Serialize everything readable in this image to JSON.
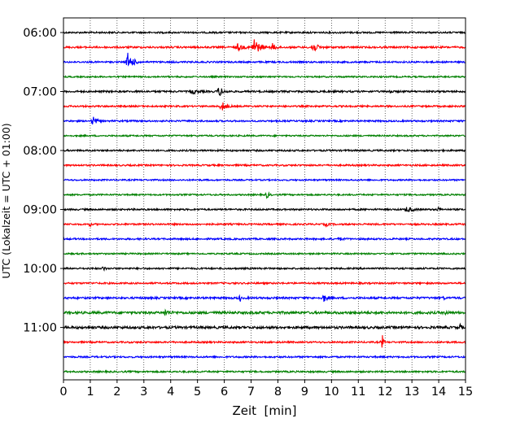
{
  "chart_data": {
    "type": "line",
    "title": "",
    "xlabel": "Zeit  [min]",
    "ylabel": "UTC (Lokalzeit = UTC + 01:00)",
    "xlim": [
      0,
      15
    ],
    "x_ticks": [
      "0",
      "1",
      "2",
      "3",
      "4",
      "5",
      "6",
      "7",
      "8",
      "9",
      "10",
      "11",
      "12",
      "13",
      "14",
      "15"
    ],
    "y_tick_labels": [
      "06:00",
      "07:00",
      "08:00",
      "09:00",
      "10:00",
      "11:00"
    ],
    "y_tick_trace_index": [
      0,
      4,
      8,
      12,
      16,
      20
    ],
    "grid": "vertical dotted lines at each minute",
    "trace_minutes": 15,
    "start_time": "06:00",
    "colors": [
      "#000000",
      "#ff0000",
      "#0000ff",
      "#008000"
    ],
    "series": [
      {
        "start": "06:00",
        "color": "#000000",
        "noise": 1.0,
        "events": []
      },
      {
        "start": "06:15",
        "color": "#ff0000",
        "noise": 1.1,
        "events": [
          {
            "t": 6.5,
            "amp": 4,
            "dur": 0.5
          },
          {
            "t": 7.1,
            "amp": 12,
            "dur": 0.5
          },
          {
            "t": 7.8,
            "amp": 4,
            "dur": 0.4
          },
          {
            "t": 9.3,
            "amp": 7,
            "dur": 0.4
          }
        ]
      },
      {
        "start": "06:30",
        "color": "#0000ff",
        "noise": 1.0,
        "events": [
          {
            "t": 2.4,
            "amp": 11,
            "dur": 0.5
          }
        ]
      },
      {
        "start": "06:45",
        "color": "#008000",
        "noise": 0.9,
        "events": []
      },
      {
        "start": "07:00",
        "color": "#000000",
        "noise": 1.1,
        "events": [
          {
            "t": 4.8,
            "amp": 2.5,
            "dur": 0.5
          },
          {
            "t": 5.8,
            "amp": 6,
            "dur": 0.4
          },
          {
            "t": 12.2,
            "amp": 3,
            "dur": 0.1
          }
        ]
      },
      {
        "start": "07:15",
        "color": "#ff0000",
        "noise": 1.0,
        "events": [
          {
            "t": 5.9,
            "amp": 6,
            "dur": 0.4
          }
        ]
      },
      {
        "start": "07:30",
        "color": "#0000ff",
        "noise": 1.0,
        "events": [
          {
            "t": 1.1,
            "amp": 6,
            "dur": 0.35
          }
        ]
      },
      {
        "start": "07:45",
        "color": "#008000",
        "noise": 0.9,
        "events": []
      },
      {
        "start": "08:00",
        "color": "#000000",
        "noise": 1.0,
        "events": []
      },
      {
        "start": "08:15",
        "color": "#ff0000",
        "noise": 1.0,
        "events": []
      },
      {
        "start": "08:30",
        "color": "#0000ff",
        "noise": 0.9,
        "events": []
      },
      {
        "start": "08:45",
        "color": "#008000",
        "noise": 0.9,
        "events": [
          {
            "t": 7.6,
            "amp": 4,
            "dur": 0.2
          }
        ]
      },
      {
        "start": "09:00",
        "color": "#000000",
        "noise": 1.0,
        "events": [
          {
            "t": 12.8,
            "amp": 3,
            "dur": 0.6
          },
          {
            "t": 14.0,
            "amp": 2.5,
            "dur": 0.2
          }
        ]
      },
      {
        "start": "09:15",
        "color": "#ff0000",
        "noise": 1.0,
        "events": [
          {
            "t": 1.0,
            "amp": 4,
            "dur": 0.05
          },
          {
            "t": 9.8,
            "amp": 2,
            "dur": 0.3
          }
        ]
      },
      {
        "start": "09:30",
        "color": "#0000ff",
        "noise": 1.0,
        "events": [
          {
            "t": 10.3,
            "amp": 2,
            "dur": 0.3
          }
        ]
      },
      {
        "start": "09:45",
        "color": "#008000",
        "noise": 0.9,
        "events": []
      },
      {
        "start": "10:00",
        "color": "#000000",
        "noise": 1.0,
        "events": [
          {
            "t": 1.5,
            "amp": 2.5,
            "dur": 0.15
          }
        ]
      },
      {
        "start": "10:15",
        "color": "#ff0000",
        "noise": 1.0,
        "events": []
      },
      {
        "start": "10:30",
        "color": "#0000ff",
        "noise": 1.2,
        "events": [
          {
            "t": 6.6,
            "amp": 4,
            "dur": 0.05
          },
          {
            "t": 9.7,
            "amp": 5,
            "dur": 0.3
          },
          {
            "t": 14.2,
            "amp": 3,
            "dur": 0.05
          }
        ]
      },
      {
        "start": "10:45",
        "color": "#008000",
        "noise": 1.5,
        "events": [
          {
            "t": 3.8,
            "amp": 3,
            "dur": 0.4
          },
          {
            "t": 14.3,
            "amp": 3,
            "dur": 0.1
          }
        ]
      },
      {
        "start": "11:00",
        "color": "#000000",
        "noise": 1.5,
        "events": [
          {
            "t": 14.8,
            "amp": 3,
            "dur": 0.2
          }
        ]
      },
      {
        "start": "11:15",
        "color": "#ff0000",
        "noise": 1.0,
        "events": [
          {
            "t": 11.9,
            "amp": 8,
            "dur": 0.1
          }
        ]
      },
      {
        "start": "11:30",
        "color": "#0000ff",
        "noise": 1.0,
        "events": []
      },
      {
        "start": "11:45",
        "color": "#008000",
        "noise": 1.0,
        "events": []
      }
    ]
  }
}
